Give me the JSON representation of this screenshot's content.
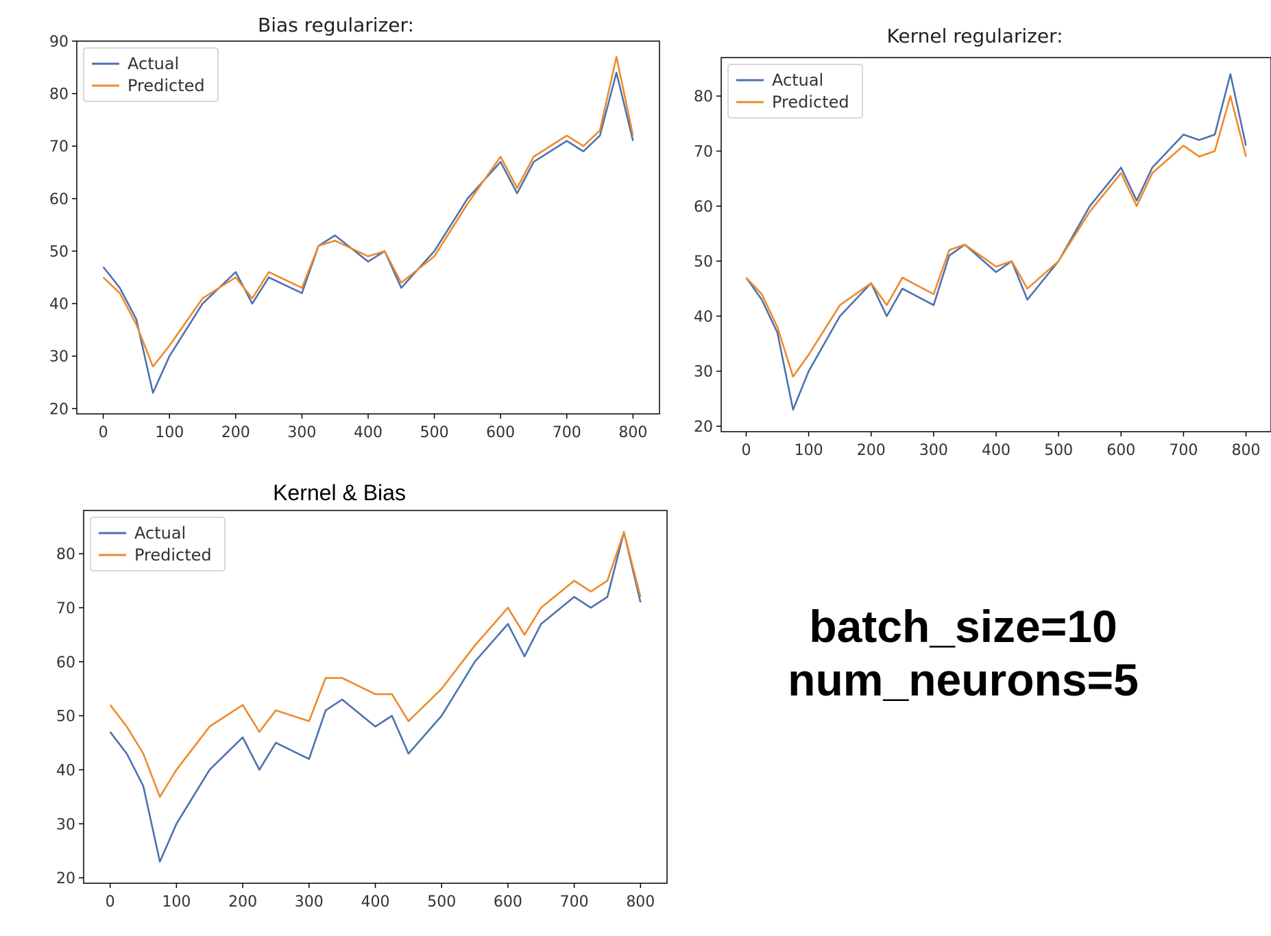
{
  "annotation": {
    "line1": "batch_size=10",
    "line2": "num_neurons=5"
  },
  "colors": {
    "actual": "#4c72b0",
    "predicted": "#ee8a2a"
  },
  "chart_data": [
    {
      "type": "line",
      "title": "Bias regularizer:",
      "xlim": [
        -40,
        840
      ],
      "ylim": [
        19,
        90
      ],
      "xticks": [
        0,
        100,
        200,
        300,
        400,
        500,
        600,
        700,
        800
      ],
      "yticks": [
        20,
        30,
        40,
        50,
        60,
        70,
        80,
        90
      ],
      "legend": "top-left",
      "x": [
        0,
        25,
        50,
        75,
        100,
        150,
        200,
        225,
        250,
        300,
        325,
        350,
        400,
        425,
        450,
        500,
        550,
        600,
        625,
        650,
        700,
        725,
        750,
        775,
        800
      ],
      "series": [
        {
          "name": "Actual",
          "values": [
            47,
            43,
            37,
            23,
            30,
            40,
            46,
            40,
            45,
            42,
            51,
            53,
            48,
            50,
            43,
            50,
            60,
            67,
            61,
            67,
            71,
            69,
            72,
            84,
            71
          ]
        },
        {
          "name": "Predicted",
          "values": [
            45,
            42,
            36,
            28,
            32,
            41,
            45,
            41,
            46,
            43,
            51,
            52,
            49,
            50,
            44,
            49,
            59,
            68,
            62,
            68,
            72,
            70,
            73,
            87,
            72
          ]
        }
      ]
    },
    {
      "type": "line",
      "title": "Kernel regularizer:",
      "xlim": [
        -40,
        840
      ],
      "ylim": [
        19,
        87
      ],
      "xticks": [
        0,
        100,
        200,
        300,
        400,
        500,
        600,
        700,
        800
      ],
      "yticks": [
        20,
        30,
        40,
        50,
        60,
        70,
        80
      ],
      "legend": "top-left",
      "x": [
        0,
        25,
        50,
        75,
        100,
        150,
        200,
        225,
        250,
        300,
        325,
        350,
        400,
        425,
        450,
        500,
        550,
        600,
        625,
        650,
        700,
        725,
        750,
        775,
        800
      ],
      "series": [
        {
          "name": "Actual",
          "values": [
            47,
            43,
            37,
            23,
            30,
            40,
            46,
            40,
            45,
            42,
            51,
            53,
            48,
            50,
            43,
            50,
            60,
            67,
            61,
            67,
            73,
            72,
            73,
            84,
            71
          ]
        },
        {
          "name": "Predicted",
          "values": [
            47,
            44,
            38,
            29,
            33,
            42,
            46,
            42,
            47,
            44,
            52,
            53,
            49,
            50,
            45,
            50,
            59,
            66,
            60,
            66,
            71,
            69,
            70,
            80,
            69
          ]
        }
      ]
    },
    {
      "type": "line",
      "title": "Kernel & Bias",
      "xlim": [
        -40,
        840
      ],
      "ylim": [
        19,
        88
      ],
      "xticks": [
        0,
        100,
        200,
        300,
        400,
        500,
        600,
        700,
        800
      ],
      "yticks": [
        20,
        30,
        40,
        50,
        60,
        70,
        80
      ],
      "legend": "top-left",
      "x": [
        0,
        25,
        50,
        75,
        100,
        150,
        200,
        225,
        250,
        300,
        325,
        350,
        400,
        425,
        450,
        500,
        550,
        600,
        625,
        650,
        700,
        725,
        750,
        775,
        800
      ],
      "series": [
        {
          "name": "Actual",
          "values": [
            47,
            43,
            37,
            23,
            30,
            40,
            46,
            40,
            45,
            42,
            51,
            53,
            48,
            50,
            43,
            50,
            60,
            67,
            61,
            67,
            72,
            70,
            72,
            84,
            71
          ]
        },
        {
          "name": "Predicted",
          "values": [
            52,
            48,
            43,
            35,
            40,
            48,
            52,
            47,
            51,
            49,
            57,
            57,
            54,
            54,
            49,
            55,
            63,
            70,
            65,
            70,
            75,
            73,
            75,
            84,
            72
          ]
        }
      ]
    }
  ]
}
